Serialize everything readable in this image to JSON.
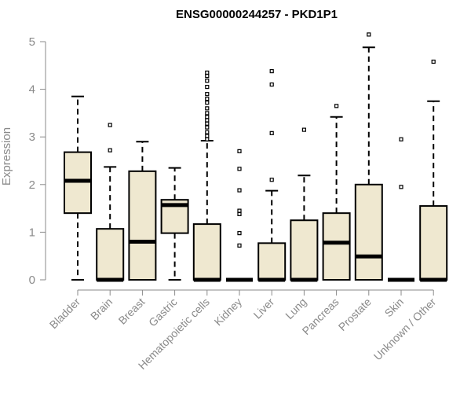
{
  "chart_data": {
    "type": "boxplot",
    "title": "ENSG00000244257 - PKD1P1",
    "xlabel": "",
    "ylabel": "Expression",
    "ylim": [
      0,
      5
    ],
    "yticks": [
      0,
      1,
      2,
      3,
      4,
      5
    ],
    "grid": false,
    "colors": {
      "box_fill": "#efe8d0",
      "box_stroke": "#000000",
      "median": "#000000",
      "axis": "#8a8a8a"
    },
    "categories": [
      "Bladder",
      "Brain",
      "Breast",
      "Gastric",
      "Hematopoietic cells",
      "Kidney",
      "Liver",
      "Lung",
      "Pancreas",
      "Prostate",
      "Skin",
      "Unknown / Other"
    ],
    "boxes": [
      {
        "category": "Bladder",
        "whisker_low": 0,
        "q1": 1.4,
        "median": 2.08,
        "q3": 2.68,
        "whisker_high": 3.85,
        "outliers": []
      },
      {
        "category": "Brain",
        "whisker_low": 0,
        "q1": 0,
        "median": 0,
        "q3": 1.07,
        "whisker_high": 2.37,
        "outliers": [
          2.72,
          3.25
        ]
      },
      {
        "category": "Breast",
        "whisker_low": 0,
        "q1": 0,
        "median": 0.8,
        "q3": 2.28,
        "whisker_high": 2.9,
        "outliers": []
      },
      {
        "category": "Gastric",
        "whisker_low": 0,
        "q1": 0.98,
        "median": 1.57,
        "q3": 1.68,
        "whisker_high": 2.35,
        "outliers": []
      },
      {
        "category": "Hematopoietic cells",
        "whisker_low": 0,
        "q1": 0,
        "median": 0,
        "q3": 1.17,
        "whisker_high": 2.92,
        "outliers": [
          2.95,
          3.02,
          3.1,
          3.2,
          3.28,
          3.35,
          3.42,
          3.5,
          3.6,
          3.72,
          3.8,
          3.9,
          4.05,
          4.18,
          4.28,
          4.35
        ]
      },
      {
        "category": "Kidney",
        "whisker_low": 0,
        "q1": 0,
        "median": 0,
        "q3": 0,
        "whisker_high": 0,
        "outliers": [
          0.72,
          0.98,
          1.38,
          1.45,
          1.88,
          2.33,
          2.7
        ]
      },
      {
        "category": "Liver",
        "whisker_low": 0,
        "q1": 0,
        "median": 0,
        "q3": 0.77,
        "whisker_high": 1.87,
        "outliers": [
          2.1,
          3.08,
          4.1,
          4.38
        ]
      },
      {
        "category": "Lung",
        "whisker_low": 0,
        "q1": 0,
        "median": 0,
        "q3": 1.25,
        "whisker_high": 2.19,
        "outliers": [
          3.15
        ]
      },
      {
        "category": "Pancreas",
        "whisker_low": 0,
        "q1": 0,
        "median": 0.78,
        "q3": 1.4,
        "whisker_high": 3.42,
        "outliers": [
          3.65
        ]
      },
      {
        "category": "Prostate",
        "whisker_low": 0,
        "q1": 0,
        "median": 0.49,
        "q3": 2.0,
        "whisker_high": 4.88,
        "outliers": [
          5.15
        ]
      },
      {
        "category": "Skin",
        "whisker_low": 0,
        "q1": 0,
        "median": 0,
        "q3": 0,
        "whisker_high": 0,
        "outliers": [
          1.95,
          2.95
        ]
      },
      {
        "category": "Unknown / Other",
        "whisker_low": 0,
        "q1": 0,
        "median": 0,
        "q3": 1.55,
        "whisker_high": 3.75,
        "outliers": [
          4.58
        ]
      }
    ]
  }
}
